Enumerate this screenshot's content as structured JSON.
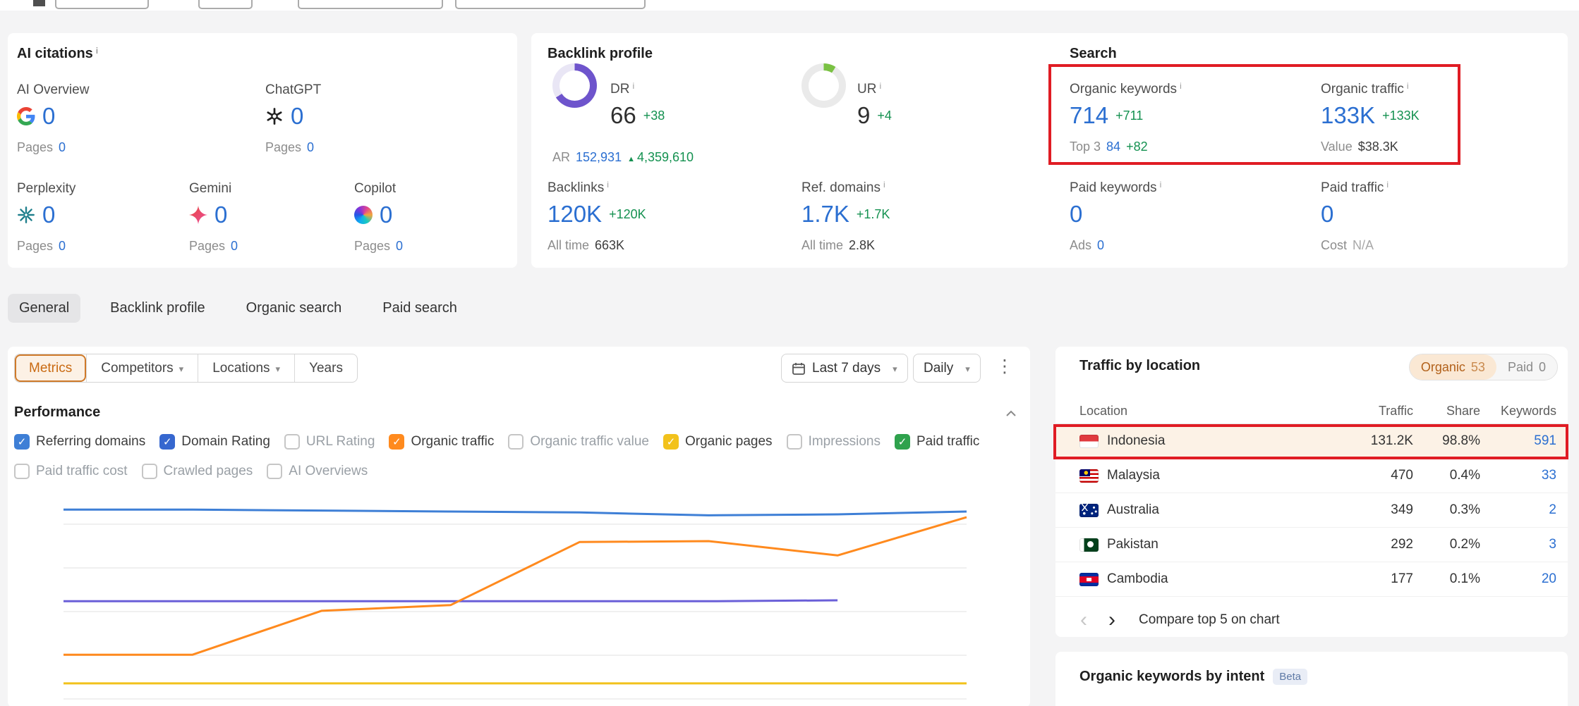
{
  "colors": {
    "link_blue": "#2b6fd1",
    "delta_green": "#149150",
    "accent_orange": "#c96a12",
    "annotation_red": "#e01c24",
    "dr_donut_purple": "#6e54cc",
    "ur_donut_green": "#7ac143",
    "highlight_row_bg": "#fcf2e6"
  },
  "icons": {
    "info": "info-icon",
    "calendar": "calendar-icon",
    "chevron_down": "chevron-down-icon",
    "chevron_up": "chevron-up-icon",
    "kebab": "kebab-menu-icon",
    "prev": "chevron-left-icon",
    "next": "chevron-right-icon",
    "delta_up": "delta-up-icon",
    "ai_logos": [
      "google-icon",
      "chatgpt-icon",
      "perplexity-icon",
      "gemini-icon",
      "copilot-icon"
    ],
    "flags": [
      "indonesia",
      "malaysia",
      "australia",
      "pakistan",
      "cambodia"
    ]
  },
  "ai_citations": {
    "title": "AI citations",
    "items": [
      {
        "label": "AI Overview",
        "value": "0",
        "pages_label": "Pages",
        "pages_value": "0"
      },
      {
        "label": "ChatGPT",
        "value": "0",
        "pages_label": "Pages",
        "pages_value": "0"
      },
      {
        "label": "Perplexity",
        "value": "0",
        "pages_label": "Pages",
        "pages_value": "0"
      },
      {
        "label": "Gemini",
        "value": "0",
        "pages_label": "Pages",
        "pages_value": "0"
      },
      {
        "label": "Copilot",
        "value": "0",
        "pages_label": "Pages",
        "pages_value": "0"
      }
    ]
  },
  "backlink_profile": {
    "title": "Backlink profile",
    "dr": {
      "label": "DR",
      "value": "66",
      "delta": "+38",
      "percent": 66,
      "ar_label": "AR",
      "ar_value": "152,931",
      "ar_delta": "4,359,610"
    },
    "ur": {
      "label": "UR",
      "value": "9",
      "delta": "+4",
      "percent": 9
    },
    "backlinks": {
      "label": "Backlinks",
      "value": "120K",
      "delta": "+120K",
      "alltime_label": "All time",
      "alltime_value": "663K"
    },
    "ref_domains": {
      "label": "Ref. domains",
      "value": "1.7K",
      "delta": "+1.7K",
      "alltime_label": "All time",
      "alltime_value": "2.8K"
    }
  },
  "search": {
    "title": "Search",
    "organic_keywords": {
      "label": "Organic keywords",
      "value": "714",
      "delta": "+711",
      "sub_label": "Top 3",
      "sub_value": "84",
      "sub_delta": "+82"
    },
    "organic_traffic": {
      "label": "Organic traffic",
      "value": "133K",
      "delta": "+133K",
      "sub_label": "Value",
      "sub_value": "$38.3K"
    },
    "paid_keywords": {
      "label": "Paid keywords",
      "value": "0",
      "sub_label": "Ads",
      "sub_value": "0"
    },
    "paid_traffic": {
      "label": "Paid traffic",
      "value": "0",
      "sub_label": "Cost",
      "sub_value": "N/A"
    }
  },
  "tabs": [
    {
      "label": "General",
      "active": true
    },
    {
      "label": "Backlink profile",
      "active": false
    },
    {
      "label": "Organic search",
      "active": false
    },
    {
      "label": "Paid search",
      "active": false
    }
  ],
  "filters": {
    "metrics_label": "Metrics",
    "competitors_label": "Competitors",
    "locations_label": "Locations",
    "years_label": "Years",
    "date_range_label": "Last 7 days",
    "granularity_label": "Daily"
  },
  "performance": {
    "title": "Performance",
    "checkboxes": [
      {
        "label": "Referring domains",
        "checked": true,
        "color": "#3e7fd6"
      },
      {
        "label": "Domain Rating",
        "checked": true,
        "color": "#3667cf"
      },
      {
        "label": "URL Rating",
        "checked": false
      },
      {
        "label": "Organic traffic",
        "checked": true,
        "color": "#ff8a1e"
      },
      {
        "label": "Organic traffic value",
        "checked": false
      },
      {
        "label": "Organic pages",
        "checked": true,
        "color": "#f2c21c"
      },
      {
        "label": "Impressions",
        "checked": false
      },
      {
        "label": "Paid traffic",
        "checked": true,
        "color": "#2fa24d"
      },
      {
        "label": "Paid traffic cost",
        "checked": false
      },
      {
        "label": "Crawled pages",
        "checked": false
      },
      {
        "label": "AI Overviews",
        "checked": false
      }
    ]
  },
  "chart_data": {
    "type": "line",
    "x_count": 8,
    "x_range": "Last 7 days (daily)",
    "y_axis": "normalized 0-100 of plot height (no axis labels visible)",
    "grid": true,
    "legend_position": "checkbox toggles above chart",
    "series": [
      {
        "id": "organic-pages",
        "name": "Organic pages",
        "color": "#f2c21c",
        "values": [
          3,
          3,
          3,
          3,
          3,
          3,
          3,
          3
        ]
      },
      {
        "id": "domain-rating",
        "name": "Domain Rating",
        "color": "#6a5fd8",
        "values": [
          46,
          46,
          46,
          46,
          46,
          46,
          46.5,
          null
        ]
      },
      {
        "id": "organic-traffic",
        "name": "Organic traffic",
        "color": "#ff8a1e",
        "values": [
          18,
          18,
          41,
          44,
          77,
          77.5,
          70,
          90
        ]
      },
      {
        "id": "referring-domains",
        "name": "Referring domains",
        "color": "#3e7fd6",
        "values": [
          94,
          94,
          93.5,
          93,
          92.5,
          91,
          91.5,
          93
        ]
      }
    ]
  },
  "traffic_by_location": {
    "title": "Traffic by location",
    "toggle": {
      "organic_label": "Organic",
      "organic_count": "53",
      "paid_label": "Paid",
      "paid_count": "0"
    },
    "headers": {
      "location": "Location",
      "traffic": "Traffic",
      "share": "Share",
      "keywords": "Keywords"
    },
    "rows": [
      {
        "country": "Indonesia",
        "traffic": "131.2K",
        "share": "98.8%",
        "keywords": "591",
        "highlighted": true
      },
      {
        "country": "Malaysia",
        "traffic": "470",
        "share": "0.4%",
        "keywords": "33",
        "highlighted": false
      },
      {
        "country": "Australia",
        "traffic": "349",
        "share": "0.3%",
        "keywords": "2",
        "highlighted": false
      },
      {
        "country": "Pakistan",
        "traffic": "292",
        "share": "0.2%",
        "keywords": "3",
        "highlighted": false
      },
      {
        "country": "Cambodia",
        "traffic": "177",
        "share": "0.1%",
        "keywords": "20",
        "highlighted": false
      }
    ],
    "compare_label": "Compare top 5 on chart"
  },
  "keywords_by_intent": {
    "title": "Organic keywords by intent",
    "badge": "Beta"
  }
}
